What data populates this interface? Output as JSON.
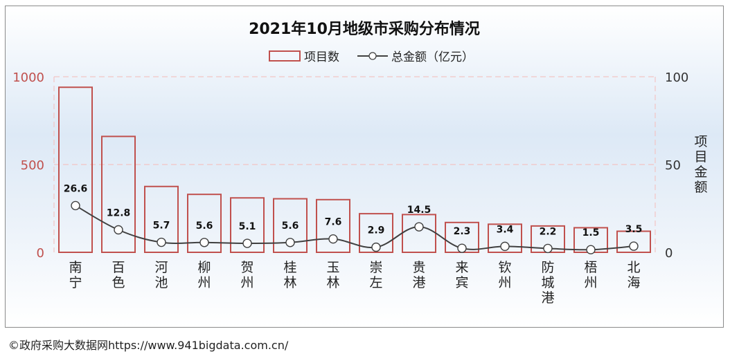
{
  "chart_data": {
    "type": "bar",
    "title": "2021年10月地级市采购分布情况",
    "categories": [
      "南宁",
      "百色",
      "河池",
      "柳州",
      "贺州",
      "桂林",
      "玉林",
      "崇左",
      "贵港",
      "来宾",
      "钦州",
      "防城港",
      "梧州",
      "北海"
    ],
    "series": [
      {
        "name": "项目数",
        "type": "bar",
        "axis": "left",
        "values": [
          940,
          660,
          375,
          330,
          310,
          305,
          300,
          220,
          215,
          170,
          160,
          150,
          140,
          120
        ]
      },
      {
        "name": "总金额（亿元）",
        "type": "line",
        "axis": "right",
        "values": [
          26.6,
          12.8,
          5.7,
          5.6,
          5.1,
          5.6,
          7.6,
          2.9,
          14.5,
          2.3,
          3.4,
          2.2,
          1.5,
          3.5
        ]
      }
    ],
    "y_left": {
      "ticks": [
        "0",
        "500",
        "1000"
      ],
      "ylim": [
        0,
        1000
      ]
    },
    "y_right": {
      "ticks": [
        "0",
        "50",
        "100"
      ],
      "ylim": [
        0,
        100
      ],
      "label": "项目金额"
    },
    "legend_position": "top",
    "grid": true,
    "colors": {
      "bar_stroke": "#c0504d",
      "line": "#404040",
      "left_axis_text": "#c0504d",
      "grid": "#f2c4c4"
    }
  },
  "footer": {
    "text": "©政府采购大数据网https://www.941bigdata.com.cn/"
  }
}
